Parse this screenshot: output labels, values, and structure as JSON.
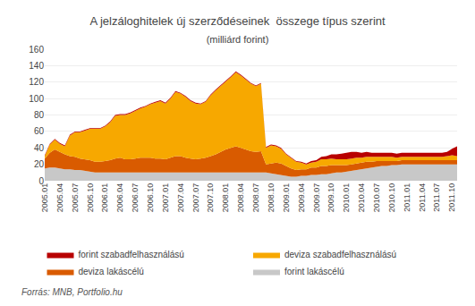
{
  "chart_data": {
    "type": "area",
    "title": "A jelzáloghitelek új szerződéseinek  összege típus szerint",
    "subtitle": "(milliárd forint)",
    "source": "Forrás: MNB, Portfolio.hu",
    "stacked": true,
    "grid": true,
    "legend": "bottom",
    "categories": [
      "2005.01",
      null,
      null,
      "2005.04",
      null,
      null,
      "2005.07",
      null,
      null,
      "2005.10",
      null,
      null,
      "2006.01",
      null,
      null,
      "2006.04",
      null,
      null,
      "2006.07",
      null,
      null,
      "2006.10",
      null,
      null,
      "2007.01",
      null,
      null,
      "2007.04",
      null,
      null,
      "2007.07",
      null,
      null,
      "2007.10",
      null,
      null,
      "2008.01",
      null,
      null,
      "2008.04",
      null,
      null,
      "2008.07",
      null,
      null,
      "2008.10",
      null,
      null,
      "2009.01",
      null,
      null,
      "2009.04",
      null,
      null,
      "2009.07",
      null,
      null,
      "2009.10",
      null,
      null,
      "2010.01",
      null,
      null,
      "2010.04",
      null,
      null,
      "2010.07",
      null,
      null,
      "2010.10",
      null,
      null,
      "2011.01",
      null,
      null,
      "2011.04",
      null,
      null,
      "2011.07",
      null,
      null,
      "2011.10",
      null
    ],
    "series": [
      {
        "name": "forint lakáscélú",
        "color": "#C8C8C8",
        "values": [
          15,
          16,
          16,
          15,
          14,
          14,
          13,
          13,
          12,
          11,
          10,
          10,
          10,
          10,
          10,
          10,
          10,
          10,
          10,
          10,
          10,
          10,
          10,
          10,
          10,
          10,
          10,
          10,
          10,
          10,
          10,
          10,
          10,
          10,
          10,
          10,
          10,
          10,
          10,
          10,
          10,
          10,
          10,
          10,
          10,
          9,
          8,
          7,
          6,
          5,
          5,
          6,
          6,
          7,
          7,
          8,
          8,
          9,
          10,
          10,
          11,
          12,
          13,
          14,
          15,
          16,
          17,
          18,
          18,
          19,
          19,
          20,
          20,
          20,
          20,
          20,
          20,
          20,
          20,
          20,
          20,
          20,
          20
        ]
      },
      {
        "name": "deviza lakáscélú",
        "color": "#D95B00",
        "values": [
          12,
          18,
          22,
          20,
          18,
          16,
          16,
          14,
          14,
          14,
          13,
          13,
          14,
          15,
          17,
          18,
          16,
          16,
          17,
          18,
          18,
          18,
          17,
          17,
          16,
          18,
          20,
          20,
          18,
          17,
          16,
          17,
          18,
          20,
          22,
          25,
          28,
          30,
          32,
          30,
          28,
          26,
          25,
          26,
          10,
          12,
          14,
          14,
          12,
          10,
          8,
          8,
          8,
          9,
          9,
          10,
          10,
          10,
          9,
          9,
          8,
          8,
          8,
          8,
          8,
          7,
          7,
          6,
          6,
          5,
          5,
          5,
          5,
          5,
          5,
          5,
          5,
          5,
          5,
          5,
          5,
          5,
          5
        ]
      },
      {
        "name": "deviza szabadfelhasználású",
        "color": "#F7A800",
        "values": [
          3,
          10,
          12,
          10,
          10,
          25,
          30,
          32,
          35,
          38,
          40,
          40,
          42,
          46,
          52,
          52,
          54,
          56,
          58,
          60,
          62,
          65,
          68,
          70,
          68,
          72,
          78,
          76,
          74,
          70,
          68,
          66,
          68,
          74,
          78,
          80,
          82,
          86,
          90,
          88,
          85,
          82,
          80,
          82,
          20,
          22,
          20,
          18,
          14,
          12,
          10,
          8,
          6,
          6,
          7,
          8,
          8,
          8,
          7,
          7,
          7,
          7,
          7,
          6,
          6,
          6,
          5,
          5,
          5,
          5,
          4,
          4,
          4,
          4,
          4,
          4,
          4,
          4,
          4,
          4,
          5,
          6,
          5
        ]
      },
      {
        "name": "forint szabadfelhasználású",
        "color": "#B80000",
        "values": [
          1,
          1,
          1,
          1,
          1,
          1,
          1,
          1,
          1,
          1,
          1,
          1,
          1,
          1,
          1,
          1,
          1,
          1,
          1,
          1,
          1,
          1,
          1,
          1,
          1,
          1,
          1,
          1,
          1,
          1,
          1,
          1,
          1,
          1,
          1,
          1,
          1,
          1,
          1,
          1,
          1,
          1,
          1,
          1,
          1,
          1,
          1,
          1,
          1,
          1,
          1,
          1,
          1,
          2,
          2,
          3,
          4,
          5,
          6,
          7,
          8,
          8,
          7,
          6,
          6,
          5,
          5,
          5,
          5,
          5,
          5,
          5,
          5,
          5,
          5,
          5,
          5,
          5,
          5,
          5,
          5,
          8,
          12
        ]
      }
    ],
    "ylim": [
      0,
      160
    ],
    "yticks": [
      0,
      20,
      40,
      60,
      80,
      100,
      120,
      140,
      160
    ]
  }
}
